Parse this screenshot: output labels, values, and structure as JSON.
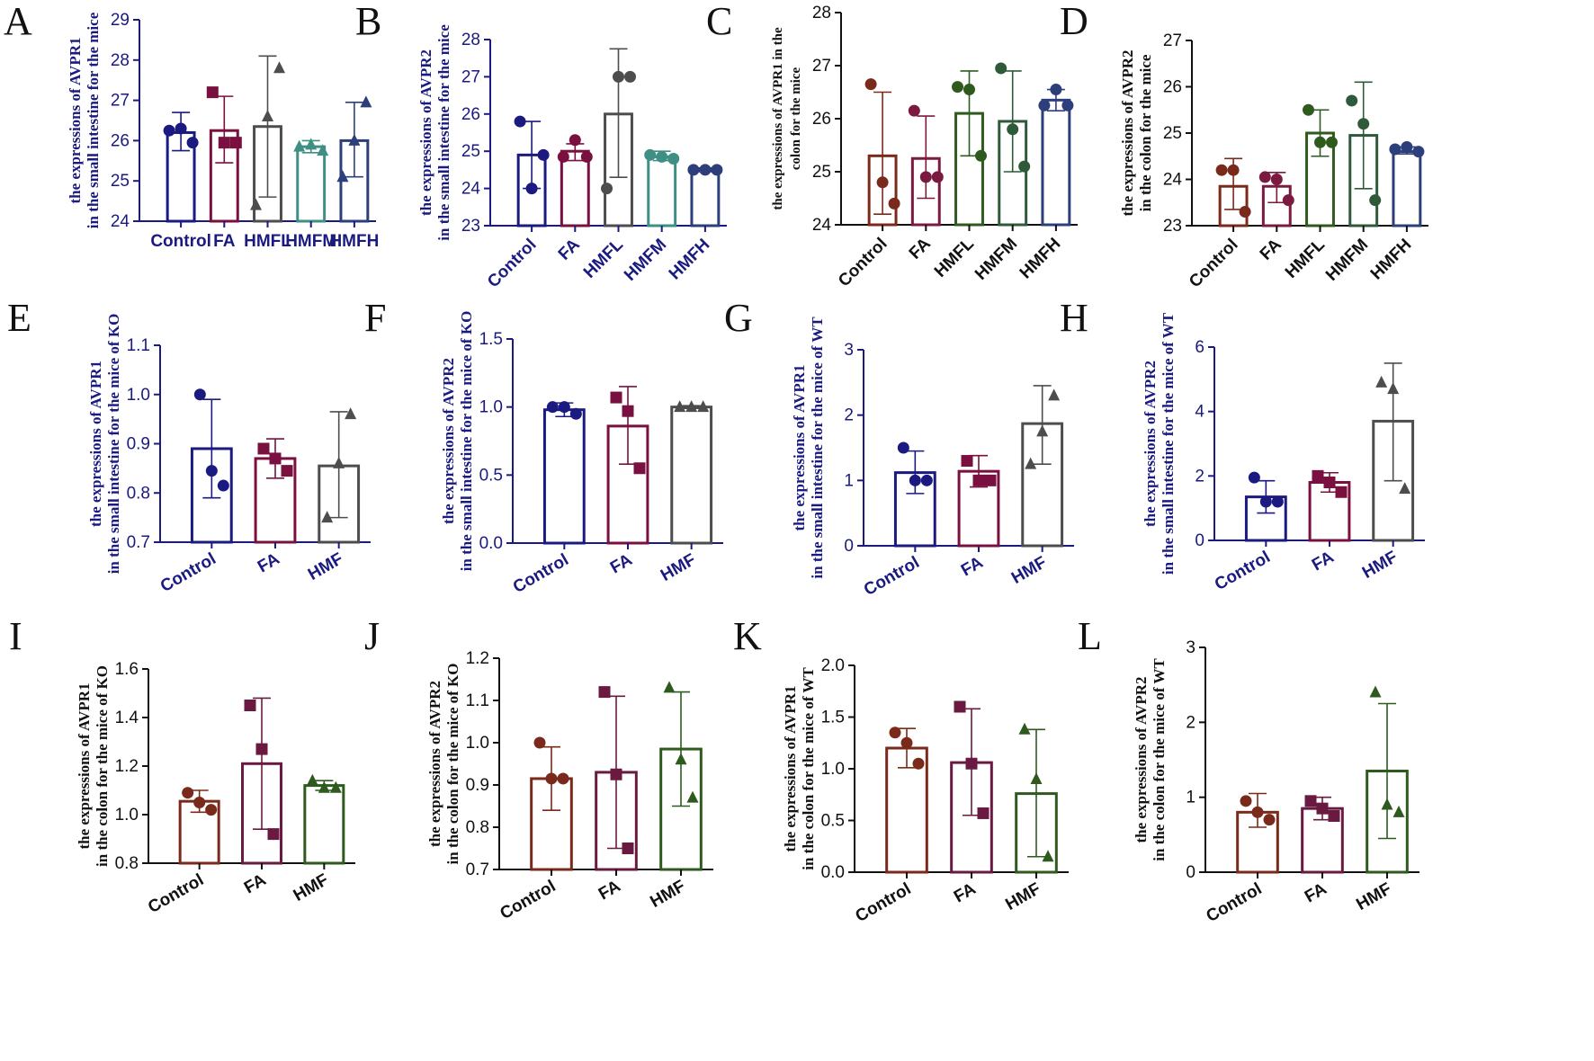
{
  "chart_data": [
    {
      "id": "A",
      "type": "bar",
      "title": "",
      "ylabel": [
        "the expressions of AVPR1",
        "in the small intestine for the mice"
      ],
      "ylabel_color": "#1a1a80",
      "axis_color": "#1a1a80",
      "cat_color": "#1a1a80",
      "ylim": [
        24,
        29
      ],
      "ticks": [
        24,
        25,
        26,
        27,
        28,
        29
      ],
      "tick_labels": [
        "24",
        "25",
        "26",
        "27",
        "28",
        "29"
      ],
      "categories": [
        "Control",
        "FA",
        "HMFL",
        "HMFM",
        "HMFH"
      ],
      "values": [
        26.2,
        26.25,
        26.35,
        25.85,
        26.0
      ],
      "err": [
        [
          25.75,
          26.7
        ],
        [
          25.45,
          27.1
        ],
        [
          24.6,
          28.1
        ],
        [
          25.7,
          26.0
        ],
        [
          25.1,
          26.95
        ]
      ],
      "points": [
        [
          26.25,
          26.3,
          25.95
        ],
        [
          27.2,
          25.95,
          25.95
        ],
        [
          24.4,
          26.6,
          27.8
        ],
        [
          25.85,
          25.9,
          25.75
        ],
        [
          25.1,
          26.0,
          26.95
        ]
      ],
      "markers": [
        "circle",
        "square",
        "triangle",
        "triangle",
        "triangle"
      ],
      "colors": [
        "#1a1a80",
        "#7a1040",
        "#4d4d4d",
        "#3f8f85",
        "#2d3f7a"
      ],
      "rotate": 0
    },
    {
      "id": "B",
      "type": "bar",
      "title": "",
      "ylabel": [
        "the expressions of AVPR2",
        "in the small intestine for the mice"
      ],
      "ylabel_color": "#1a1a80",
      "axis_color": "#1a1a80",
      "cat_color": "#1a1a80",
      "ylim": [
        23,
        28
      ],
      "ticks": [
        23,
        24,
        25,
        26,
        27,
        28
      ],
      "tick_labels": [
        "23",
        "24",
        "25",
        "26",
        "27",
        "28"
      ],
      "categories": [
        "Control",
        "FA",
        "HMFL",
        "HMFM",
        "HMFH"
      ],
      "values": [
        24.9,
        25.0,
        26.0,
        24.85,
        24.5
      ],
      "err": [
        [
          24.0,
          25.8
        ],
        [
          24.75,
          25.2
        ],
        [
          24.3,
          27.75
        ],
        [
          24.75,
          25.0
        ],
        [
          24.45,
          24.55
        ]
      ],
      "points": [
        [
          25.8,
          24.0,
          24.9
        ],
        [
          24.85,
          25.3,
          24.85
        ],
        [
          24.0,
          27.0,
          27.0
        ],
        [
          24.9,
          24.85,
          24.8
        ],
        [
          24.5,
          24.5,
          24.5
        ]
      ],
      "markers": [
        "circle",
        "circle",
        "circle",
        "circle",
        "circle"
      ],
      "colors": [
        "#1a1a80",
        "#7a1040",
        "#4d4d4d",
        "#3f8f85",
        "#2d3f7a"
      ],
      "rotate": -45
    },
    {
      "id": "C",
      "type": "bar",
      "title": "",
      "ylabel": [
        "the expressions of AVPR1 in the",
        "colon for the mice"
      ],
      "ylabel_color": "#111111",
      "axis_color": "#111111",
      "cat_color": "#111111",
      "ylim": [
        24,
        28
      ],
      "ticks": [
        24,
        25,
        26,
        27,
        28
      ],
      "tick_labels": [
        "24",
        "25",
        "26",
        "27",
        "28"
      ],
      "categories": [
        "Control",
        "FA",
        "HMFL",
        "HMFM",
        "HMFH"
      ],
      "values": [
        25.3,
        25.25,
        26.1,
        25.95,
        26.35
      ],
      "err": [
        [
          24.2,
          26.5
        ],
        [
          24.5,
          26.05
        ],
        [
          25.3,
          26.9
        ],
        [
          25.0,
          26.9
        ],
        [
          26.15,
          26.55
        ]
      ],
      "points": [
        [
          26.65,
          24.8,
          24.4
        ],
        [
          26.15,
          24.9,
          24.9
        ],
        [
          26.6,
          26.55,
          25.3
        ],
        [
          26.95,
          25.8,
          25.1
        ],
        [
          26.25,
          26.55,
          26.25
        ]
      ],
      "markers": [
        "circle",
        "circle",
        "circle",
        "circle",
        "circle"
      ],
      "colors": [
        "#7a2a1a",
        "#7a1a40",
        "#2f5a1e",
        "#2f5a3a",
        "#2d3f7a"
      ],
      "rotate": -45
    },
    {
      "id": "D",
      "type": "bar",
      "title": "",
      "ylabel": [
        "the expressions of AVPR2",
        "in the colon for the mice"
      ],
      "ylabel_color": "#111111",
      "axis_color": "#111111",
      "cat_color": "#111111",
      "ylim": [
        23,
        27
      ],
      "ticks": [
        23,
        24,
        25,
        26,
        27
      ],
      "tick_labels": [
        "23",
        "24",
        "25",
        "26",
        "27"
      ],
      "categories": [
        "Control",
        "FA",
        "HMFL",
        "HMFM",
        "HMFH"
      ],
      "values": [
        23.85,
        23.85,
        25.0,
        24.95,
        24.6
      ],
      "err": [
        [
          23.35,
          24.45
        ],
        [
          23.5,
          24.15
        ],
        [
          24.5,
          25.5
        ],
        [
          23.8,
          26.1
        ],
        [
          24.55,
          24.7
        ]
      ],
      "points": [
        [
          24.2,
          24.2,
          23.3
        ],
        [
          24.05,
          24.0,
          23.55
        ],
        [
          25.5,
          24.8,
          24.8
        ],
        [
          25.7,
          25.2,
          23.55
        ],
        [
          24.65,
          24.7,
          24.6
        ]
      ],
      "markers": [
        "circle",
        "circle",
        "circle",
        "circle",
        "circle"
      ],
      "colors": [
        "#7a2a1a",
        "#7a1a40",
        "#2f5a1e",
        "#2f5a3a",
        "#2d3f7a"
      ],
      "rotate": -45
    },
    {
      "id": "E",
      "type": "bar",
      "title": "",
      "ylabel": [
        "the expressions of AVPR1",
        "in the small intestine for the mice of KO"
      ],
      "ylabel_color": "#1a1a80",
      "axis_color": "#1a1a80",
      "cat_color": "#1a1a80",
      "ylim": [
        0.7,
        1.1
      ],
      "ticks": [
        0.7,
        0.8,
        0.9,
        1.0,
        1.1
      ],
      "tick_labels": [
        "0.7",
        "0.8",
        "0.9",
        "1.0",
        "1.1"
      ],
      "categories": [
        "Control",
        "FA",
        "HMF"
      ],
      "values": [
        0.89,
        0.87,
        0.855
      ],
      "err": [
        [
          0.79,
          0.99
        ],
        [
          0.83,
          0.91
        ],
        [
          0.75,
          0.965
        ]
      ],
      "points": [
        [
          1.0,
          0.845,
          0.815
        ],
        [
          0.89,
          0.87,
          0.845
        ],
        [
          0.75,
          0.86,
          0.96
        ]
      ],
      "markers": [
        "circle",
        "square",
        "triangle"
      ],
      "colors": [
        "#1a1a80",
        "#7a1040",
        "#4d4d4d"
      ],
      "rotate": -30
    },
    {
      "id": "F",
      "type": "bar",
      "title": "",
      "ylabel": [
        "the expressions of AVPR2",
        "in the small intestine for the mice of KO"
      ],
      "ylabel_color": "#1a1a80",
      "axis_color": "#1a1a80",
      "cat_color": "#1a1a80",
      "ylim": [
        0,
        1.5
      ],
      "ticks": [
        0,
        0.5,
        1.0,
        1.5
      ],
      "tick_labels": [
        "0.0",
        "0.5",
        "1.0",
        "1.5"
      ],
      "categories": [
        "Control",
        "FA",
        "HMF"
      ],
      "values": [
        0.98,
        0.86,
        1.0
      ],
      "err": [
        [
          0.93,
          1.03
        ],
        [
          0.58,
          1.15
        ],
        [
          0.99,
          1.01
        ]
      ],
      "points": [
        [
          1.0,
          1.0,
          0.95
        ],
        [
          1.07,
          0.97,
          0.55
        ],
        [
          1.0,
          1.0,
          1.0
        ]
      ],
      "markers": [
        "circle",
        "square",
        "triangle"
      ],
      "colors": [
        "#1a1a80",
        "#7a1040",
        "#4d4d4d"
      ],
      "rotate": -30
    },
    {
      "id": "G",
      "type": "bar",
      "title": "",
      "ylabel": [
        "the expressions of AVPR1",
        "in the small intestine for the mice of WT"
      ],
      "ylabel_color": "#1a1a80",
      "axis_color": "#1a1a80",
      "cat_color": "#1a1a80",
      "ylim": [
        0,
        3
      ],
      "ticks": [
        0,
        1,
        2,
        3
      ],
      "tick_labels": [
        "0",
        "1",
        "2",
        "3"
      ],
      "categories": [
        "Control",
        "FA",
        "HMF"
      ],
      "values": [
        1.12,
        1.14,
        1.87
      ],
      "err": [
        [
          0.8,
          1.45
        ],
        [
          0.9,
          1.38
        ],
        [
          1.25,
          2.45
        ]
      ],
      "points": [
        [
          1.5,
          1.0,
          1.0
        ],
        [
          1.3,
          1.0,
          1.0
        ],
        [
          1.25,
          1.75,
          2.3
        ]
      ],
      "markers": [
        "circle",
        "square",
        "triangle"
      ],
      "colors": [
        "#1a1a80",
        "#7a1040",
        "#4d4d4d"
      ],
      "rotate": -30
    },
    {
      "id": "H",
      "type": "bar",
      "title": "",
      "ylabel": [
        "the expressions of AVPR2",
        "in the small intestine for the mice of WT"
      ],
      "ylabel_color": "#1a1a80",
      "axis_color": "#1a1a80",
      "cat_color": "#1a1a80",
      "ylim": [
        0,
        6
      ],
      "ticks": [
        0,
        2,
        4,
        6
      ],
      "tick_labels": [
        "0",
        "2",
        "4",
        "6"
      ],
      "categories": [
        "Control",
        "FA",
        "HMF"
      ],
      "values": [
        1.35,
        1.8,
        3.7
      ],
      "err": [
        [
          0.85,
          1.85
        ],
        [
          1.5,
          2.1
        ],
        [
          1.85,
          5.5
        ]
      ],
      "points": [
        [
          1.95,
          1.2,
          1.2
        ],
        [
          2.0,
          1.8,
          1.5
        ],
        [
          4.9,
          4.7,
          1.6
        ]
      ],
      "markers": [
        "circle",
        "square",
        "triangle"
      ],
      "colors": [
        "#1a1a80",
        "#7a1040",
        "#4d4d4d"
      ],
      "rotate": -30
    },
    {
      "id": "I",
      "type": "bar",
      "title": "",
      "ylabel": [
        "the expressions of AVPR1",
        "in the colon for the mice of KO"
      ],
      "ylabel_color": "#111111",
      "axis_color": "#111111",
      "cat_color": "#111111",
      "ylim": [
        0.8,
        1.6
      ],
      "ticks": [
        0.8,
        1.0,
        1.2,
        1.4,
        1.6
      ],
      "tick_labels": [
        "0.8",
        "1.0",
        "1.2",
        "1.4",
        "1.6"
      ],
      "categories": [
        "Control",
        "FA",
        "HMF"
      ],
      "values": [
        1.055,
        1.21,
        1.12
      ],
      "err": [
        [
          1.01,
          1.1
        ],
        [
          0.94,
          1.48
        ],
        [
          1.1,
          1.14
        ]
      ],
      "points": [
        [
          1.09,
          1.05,
          1.02
        ],
        [
          1.45,
          1.27,
          0.92
        ],
        [
          1.14,
          1.11,
          1.11
        ]
      ],
      "markers": [
        "circle",
        "square",
        "triangle"
      ],
      "colors": [
        "#7a2a1a",
        "#6a1a40",
        "#2f5a1e"
      ],
      "rotate": -30
    },
    {
      "id": "J",
      "type": "bar",
      "title": "",
      "ylabel": [
        "the expressions of AVPR2",
        "in the colon for the mice of KO"
      ],
      "ylabel_color": "#111111",
      "axis_color": "#111111",
      "cat_color": "#111111",
      "ylim": [
        0.7,
        1.2
      ],
      "ticks": [
        0.7,
        0.8,
        0.9,
        1.0,
        1.1,
        1.2
      ],
      "tick_labels": [
        "0.7",
        "0.8",
        "0.9",
        "1.0",
        "1.1",
        "1.2"
      ],
      "categories": [
        "Control",
        "FA",
        "HMF"
      ],
      "values": [
        0.915,
        0.93,
        0.985
      ],
      "err": [
        [
          0.84,
          0.99
        ],
        [
          0.75,
          1.11
        ],
        [
          0.85,
          1.12
        ]
      ],
      "points": [
        [
          1.0,
          0.915,
          0.915
        ],
        [
          1.12,
          0.925,
          0.75
        ],
        [
          1.13,
          0.96,
          0.87
        ]
      ],
      "markers": [
        "circle",
        "square",
        "triangle"
      ],
      "colors": [
        "#7a2a1a",
        "#6a1a40",
        "#2f5a1e"
      ],
      "rotate": -30
    },
    {
      "id": "K",
      "type": "bar",
      "title": "",
      "ylabel": [
        "the expressions of AVPR1",
        "in the colon for the mice of WT"
      ],
      "ylabel_color": "#111111",
      "axis_color": "#111111",
      "cat_color": "#111111",
      "ylim": [
        0,
        2.0
      ],
      "ticks": [
        0,
        0.5,
        1.0,
        1.5,
        2.0
      ],
      "tick_labels": [
        "0.0",
        "0.5",
        "1.0",
        "1.5",
        "2.0"
      ],
      "categories": [
        "Control",
        "FA",
        "HMF"
      ],
      "values": [
        1.2,
        1.06,
        0.76
      ],
      "err": [
        [
          1.01,
          1.39
        ],
        [
          0.55,
          1.58
        ],
        [
          0.15,
          1.38
        ]
      ],
      "points": [
        [
          1.35,
          1.25,
          1.05
        ],
        [
          1.6,
          1.05,
          0.57
        ],
        [
          1.38,
          0.9,
          0.15
        ]
      ],
      "markers": [
        "circle",
        "square",
        "triangle"
      ],
      "colors": [
        "#7a2a1a",
        "#6a1a40",
        "#2f5a1e"
      ],
      "rotate": -30
    },
    {
      "id": "L",
      "type": "bar",
      "title": "",
      "ylabel": [
        "the expressions of AVPR2",
        "in the colon for the mice of WT"
      ],
      "ylabel_color": "#111111",
      "axis_color": "#111111",
      "cat_color": "#111111",
      "ylim": [
        0,
        3
      ],
      "ticks": [
        0,
        1,
        2,
        3
      ],
      "tick_labels": [
        "0",
        "1",
        "2",
        "3"
      ],
      "categories": [
        "Control",
        "FA",
        "HMF"
      ],
      "values": [
        0.8,
        0.85,
        1.35
      ],
      "err": [
        [
          0.6,
          1.05
        ],
        [
          0.7,
          1.0
        ],
        [
          0.45,
          2.25
        ]
      ],
      "points": [
        [
          0.95,
          0.8,
          0.7
        ],
        [
          0.95,
          0.85,
          0.75
        ],
        [
          2.4,
          0.9,
          0.8
        ]
      ],
      "markers": [
        "circle",
        "square",
        "triangle"
      ],
      "colors": [
        "#7a2a1a",
        "#6a1a40",
        "#2f5a1e"
      ],
      "rotate": -30
    }
  ]
}
